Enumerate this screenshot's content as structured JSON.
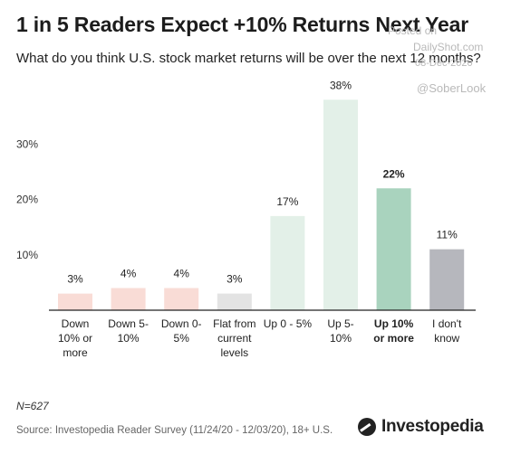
{
  "chart_data": {
    "type": "bar",
    "title": "1 in 5 Readers Expect +10% Returns Next Year",
    "subtitle": "What do you think U.S. stock market returns will be over the next 12 months?",
    "categories": [
      "Down 10% or more",
      "Down 5-10%",
      "Down 0-5%",
      "Flat from current levels",
      "Up 0 - 5%",
      "Up 5-10%",
      "Up 10% or more",
      "I don't know"
    ],
    "category_lines": [
      [
        "Down",
        "10% or",
        "more"
      ],
      [
        "Down 5-",
        "10%"
      ],
      [
        "Down 0-",
        "5%"
      ],
      [
        "Flat from",
        "current",
        "levels"
      ],
      [
        "Up 0 - 5%"
      ],
      [
        "Up 5-",
        "10%"
      ],
      [
        "Up 10%",
        "or more"
      ],
      [
        "I don't",
        "know"
      ]
    ],
    "values": [
      3,
      4,
      4,
      3,
      17,
      38,
      22,
      11
    ],
    "data_labels": [
      "3%",
      "4%",
      "4%",
      "3%",
      "17%",
      "38%",
      "22%",
      "11%"
    ],
    "highlight_index": 6,
    "bar_colors": [
      "#f9dcd6",
      "#f9dcd6",
      "#f9dcd6",
      "#e3e3e3",
      "#e3f0e8",
      "#e3f0e8",
      "#a9d3be",
      "#b6b7bd"
    ],
    "yticks": [
      10,
      20,
      30
    ],
    "ytick_labels": [
      "10%",
      "20%",
      "30%"
    ],
    "ylim": [
      0,
      40
    ],
    "xlabel": "",
    "ylabel": "",
    "grid": false,
    "legend": "none"
  },
  "footer": {
    "note": "N=627",
    "source": "Source: Investopedia Reader Survey (11/24/20 - 12/03/20), 18+ U.S.",
    "brand": "Investopedia"
  },
  "watermark": {
    "posted": "Posted on",
    "site": "DailyShot.com",
    "date": "08-Dec-2020",
    "handle": "@SoberLook"
  }
}
